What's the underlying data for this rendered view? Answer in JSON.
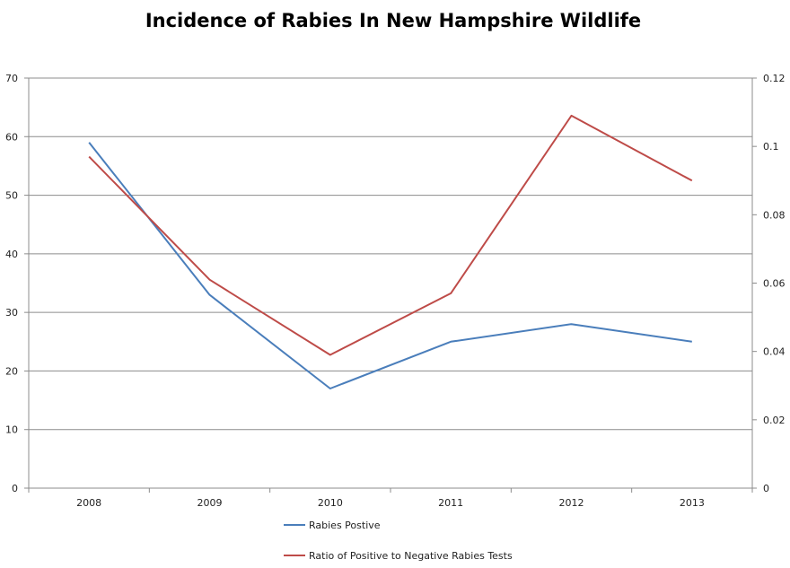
{
  "chart_data": {
    "type": "line",
    "title": "Incidence of Rabies In New Hampshire Wildlife",
    "categories": [
      "2008",
      "2009",
      "2010",
      "2011",
      "2012",
      "2013"
    ],
    "y_axis_left": {
      "range": [
        0,
        70
      ],
      "ticks": [
        "0",
        "10",
        "20",
        "30",
        "40",
        "50",
        "60",
        "70"
      ]
    },
    "y_axis_right": {
      "range": [
        0,
        0.12
      ],
      "ticks": [
        "0",
        "0.02",
        "0.04",
        "0.06",
        "0.08",
        "0.1",
        "0.12"
      ]
    },
    "grid": true,
    "legend_position": "bottom",
    "series": [
      {
        "name": "Rabies Postive",
        "axis": "left",
        "color": "#4a7ebb",
        "values": [
          59,
          33,
          17,
          25,
          28,
          25
        ]
      },
      {
        "name": "Ratio of Positive to Negative Rabies Tests",
        "axis": "right",
        "color": "#be4b48",
        "values": [
          0.097,
          0.061,
          0.039,
          0.057,
          0.109,
          0.09
        ]
      }
    ]
  }
}
